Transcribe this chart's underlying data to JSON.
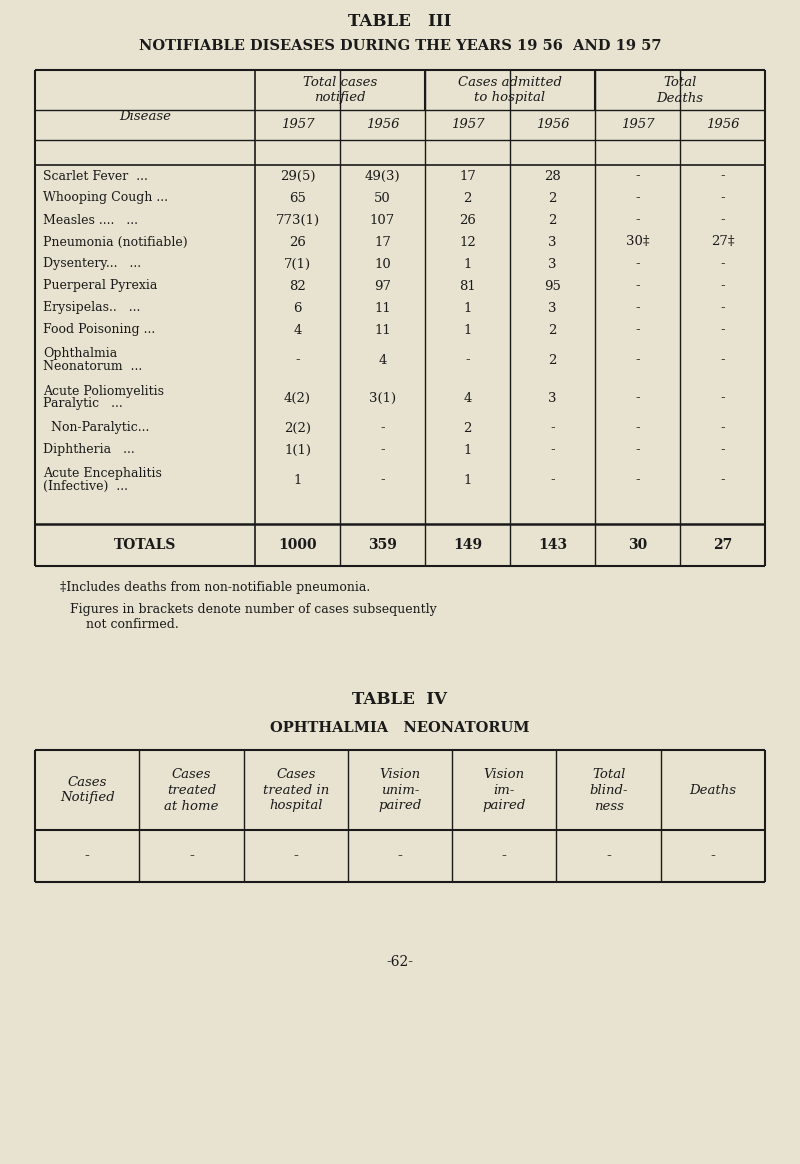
{
  "bg_color": "#e8e3d0",
  "title3": "TABLE   III",
  "subtitle3": "NOTIFIABLE DISEASES DURING THE YEARS 19 56  AND 19 57",
  "table3_col_headers_top": [
    "Total cases\nnotified",
    "Cases admitted\nto hospital",
    "Total\nDeaths"
  ],
  "table3_col_headers_year": [
    "1957",
    "1956",
    "1957",
    "1956",
    "1957",
    "1956"
  ],
  "table3_disease_col": "Disease",
  "table3_rows": [
    [
      "Scarlet Fever  ...",
      "29(5)",
      "49(3)",
      "17",
      "28",
      "-",
      "-"
    ],
    [
      "Whooping Cough ...",
      "65",
      "50",
      "2",
      "2",
      "-",
      "-"
    ],
    [
      "Measles ....   ...",
      "773(1)",
      "107",
      "26",
      "2",
      "-",
      "-"
    ],
    [
      "Pneumonia (notifiable)",
      "26",
      "17",
      "12",
      "3",
      "30‡",
      "27‡"
    ],
    [
      "Dysentery...   ...",
      "7(1)",
      "10",
      "1",
      "3",
      "-",
      "-"
    ],
    [
      "Puerperal Pyrexia",
      "82",
      "97",
      "81",
      "95",
      "-",
      "-"
    ],
    [
      "Erysipelas..   ...",
      "6",
      "11",
      "1",
      "3",
      "-",
      "-"
    ],
    [
      "Food Poisoning ...",
      "4",
      "11",
      "1",
      "2",
      "-",
      "-"
    ],
    [
      "Ophthalmia\n  Neonatorum  ...",
      "-",
      "4",
      "-",
      "2",
      "-",
      "-"
    ],
    [
      "Acute Poliomyelitis\n  Paralytic   ...",
      "4(2)",
      "3(1)",
      "4",
      "3",
      "-",
      "-"
    ],
    [
      "  Non-Paralytic...",
      "2(2)",
      "-",
      "2",
      "-",
      "-",
      "-"
    ],
    [
      "Diphtheria   ...",
      "1(1)",
      "-",
      "1",
      "-",
      "-",
      "-"
    ],
    [
      "Acute Encephalitis\n  (Infective)  ...",
      "1",
      "-",
      "1",
      "-",
      "-",
      "-"
    ]
  ],
  "table3_row_heights": [
    22,
    22,
    22,
    22,
    22,
    22,
    22,
    22,
    38,
    38,
    22,
    22,
    38
  ],
  "table3_totals": [
    "TOTALS",
    "1000",
    "359",
    "149",
    "143",
    "30",
    "27"
  ],
  "footnote1": "‡Includes deaths from non-notifiable pneumonia.",
  "footnote2": "Figures in brackets denote number of cases subsequently",
  "footnote2b": "    not confirmed.",
  "title4": "TABLE  IV",
  "subtitle4": "OPHTHALMIA   NEONATORUM",
  "table4_headers": [
    "Cases\nNotified",
    "Cases\ntreated\nat home",
    "Cases\ntreated in\nhospital",
    "Vision\nunim-\npaired",
    "Vision\nim-\npaired",
    "Total\nblind-\nness",
    "Deaths"
  ],
  "table4_data": [
    "-",
    "-",
    "-",
    "-",
    "-",
    "-",
    "-"
  ],
  "page_num": "-62-"
}
